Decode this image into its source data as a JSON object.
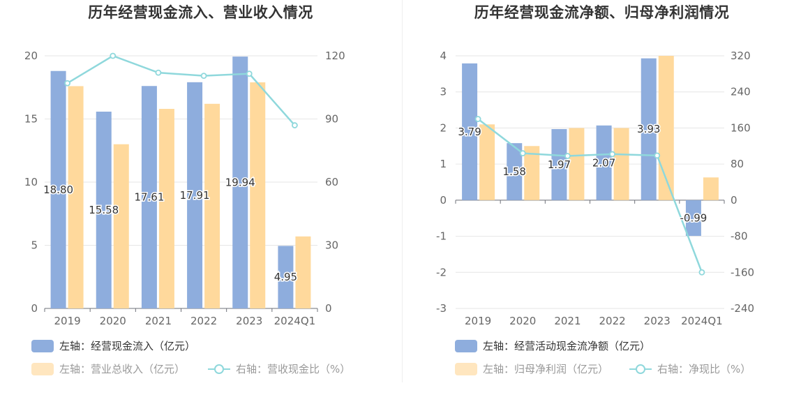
{
  "colors": {
    "bar_primary": "#8eaddd",
    "bar_secondary": "#ffd99c",
    "line": "#8fd8dc",
    "grid": "#e6e6e6"
  },
  "chart_data": [
    {
      "type": "bar",
      "title": "历年经营现金流入、营业收入情况",
      "categories": [
        "2019",
        "2020",
        "2021",
        "2022",
        "2023",
        "2024Q1"
      ],
      "left_axis": {
        "ticks": [
          "0",
          "5",
          "10",
          "15",
          "20"
        ],
        "ylim": [
          0,
          20
        ]
      },
      "right_axis": {
        "ticks": [
          "0",
          "30",
          "60",
          "90",
          "120"
        ],
        "ylim": [
          0,
          120
        ]
      },
      "grid": true,
      "legend_position": "bottom",
      "series": [
        {
          "name": "左轴：经营现金流入（亿元）",
          "type": "bar",
          "axis": "left",
          "values": [
            18.8,
            15.58,
            17.61,
            17.91,
            19.94,
            4.95
          ],
          "labels": [
            "18.80",
            "15.58",
            "17.61",
            "17.91",
            "19.94",
            "4.95"
          ]
        },
        {
          "name": "左轴：营业总收入（亿元）",
          "type": "bar",
          "axis": "left",
          "values": [
            17.6,
            13.0,
            15.8,
            16.2,
            17.9,
            5.7
          ]
        },
        {
          "name": "右轴：营收现金比（%）",
          "type": "line",
          "axis": "right",
          "values": [
            107,
            120,
            112,
            110.5,
            111.5,
            87
          ]
        }
      ]
    },
    {
      "type": "bar",
      "title": "历年经营现金流净额、归母净利润情况",
      "categories": [
        "2019",
        "2020",
        "2021",
        "2022",
        "2023",
        "2024Q1"
      ],
      "left_axis": {
        "ticks": [
          "-3",
          "-2",
          "-1",
          "0",
          "1",
          "2",
          "3",
          "4"
        ],
        "ylim": [
          -3,
          4
        ]
      },
      "right_axis": {
        "ticks": [
          "-240",
          "-160",
          "-80",
          "0",
          "80",
          "160",
          "240",
          "320"
        ],
        "ylim": [
          -240,
          320
        ]
      },
      "grid": true,
      "legend_position": "bottom",
      "series": [
        {
          "name": "左轴：经营活动现金流净额（亿元）",
          "type": "bar",
          "axis": "left",
          "values": [
            3.79,
            1.58,
            1.97,
            2.07,
            3.93,
            -0.99
          ],
          "labels": [
            "3.79",
            "1.58",
            "1.97",
            "2.07",
            "3.93",
            "-0.99"
          ]
        },
        {
          "name": "左轴：归母净利润（亿元）",
          "type": "bar",
          "axis": "left",
          "values": [
            2.1,
            1.5,
            2.0,
            2.0,
            4.0,
            0.63
          ]
        },
        {
          "name": "右轴：净现比（%）",
          "type": "line",
          "axis": "right",
          "values": [
            180,
            104,
            98,
            102,
            99,
            -160
          ]
        }
      ]
    }
  ]
}
